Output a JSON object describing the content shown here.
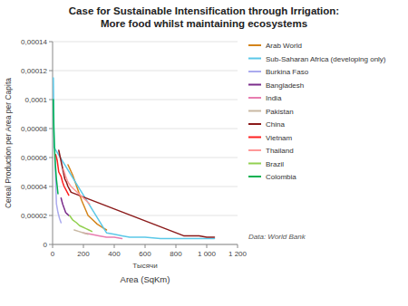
{
  "chart_data": {
    "type": "line",
    "title": "Case for Sustainable Intensification through Irrigation:\nMore food whilst maintaining ecosystems",
    "xlabel": "Area (SqKm)",
    "ylabel": "Cereal Production per Area per Capita",
    "annotations": [
      "Тысячи",
      "Data: World Bank"
    ],
    "xlim": [
      0,
      1200
    ],
    "ylim": [
      0,
      0.00014
    ],
    "xticks": [
      0,
      200,
      400,
      600,
      800,
      {
        "value": 1000,
        "label": "1 000"
      },
      {
        "value": 1200,
        "label": "1 200"
      }
    ],
    "yticks": [
      0,
      {
        "value": 2e-05,
        "label": "0,00002"
      },
      {
        "value": 4e-05,
        "label": "0,00004"
      },
      {
        "value": 6e-05,
        "label": "0,00006"
      },
      {
        "value": 8e-05,
        "label": "0,00008"
      },
      {
        "value": 0.0001,
        "label": "0,0001"
      },
      {
        "value": 0.00012,
        "label": "0,00012"
      },
      {
        "value": 0.00014,
        "label": "0,00014"
      }
    ],
    "grid": "y",
    "legend": "right",
    "series": [
      {
        "name": "Arab World",
        "color": "#D4841A",
        "x": [
          100,
          130,
          150,
          170,
          190,
          210,
          230,
          260,
          290,
          320,
          350
        ],
        "values": [
          5.5e-05,
          4.8e-05,
          4.2e-05,
          3.6e-05,
          3e-05,
          2.5e-05,
          2e-05,
          1.7e-05,
          1.4e-05,
          1.2e-05,
          1e-05
        ]
      },
      {
        "name": "Sub-Saharan Africa (developing only)",
        "color": "#5BC8E8",
        "x": [
          5,
          10,
          350,
          400,
          450,
          500,
          600,
          700,
          800,
          900,
          1000,
          1050
        ],
        "values": [
          0.000115,
          6.7e-05,
          8e-06,
          7e-06,
          6e-06,
          5e-06,
          5e-06,
          4e-06,
          4e-06,
          4e-06,
          4e-06,
          4e-06
        ]
      },
      {
        "name": "Burkina Faso",
        "color": "#AAAAEE",
        "x": [
          15,
          25,
          35,
          45,
          55
        ],
        "values": [
          6e-05,
          2.8e-05,
          2.2e-05,
          1.8e-05,
          1.5e-05
        ]
      },
      {
        "name": "Bangladesh",
        "color": "#7B2D8B",
        "x": [
          55,
          65,
          75,
          85,
          95,
          105
        ],
        "values": [
          3.2e-05,
          2.8e-05,
          2.5e-05,
          2.2e-05,
          2.1e-05,
          2e-05
        ]
      },
      {
        "name": "India",
        "color": "#E87DB0",
        "x": [
          200,
          250,
          300,
          350,
          400,
          450
        ],
        "values": [
          8e-06,
          7e-06,
          6e-06,
          5e-06,
          5e-06,
          4e-06
        ]
      },
      {
        "name": "Pakistan",
        "color": "#C8B8A2",
        "x": [
          140,
          170,
          200,
          230
        ],
        "values": [
          1e-05,
          9e-06,
          8e-06,
          7e-06
        ]
      },
      {
        "name": "China",
        "color": "#8B1A1A",
        "x": [
          40,
          50,
          60,
          70,
          80,
          90,
          100,
          110,
          120,
          850,
          900,
          950,
          1000,
          1050
        ],
        "values": [
          6.5e-05,
          6e-05,
          5.5e-05,
          5e-05,
          4.5e-05,
          4.3e-05,
          4e-05,
          3.8e-05,
          3.6e-05,
          6e-06,
          6e-06,
          6e-06,
          5e-06,
          5e-06
        ]
      },
      {
        "name": "Vietnam",
        "color": "#FF2020",
        "x": [
          20,
          30,
          40,
          55,
          65,
          75,
          85,
          95,
          105
        ],
        "values": [
          6.2e-05,
          5.8e-05,
          5e-05,
          4.7e-05,
          4.3e-05,
          4e-05,
          3.8e-05,
          3.6e-05,
          3.4e-05
        ]
      },
      {
        "name": "Thailand",
        "color": "#FF9999",
        "x": [
          70,
          85,
          100,
          120,
          140,
          160,
          180,
          200,
          220,
          240
        ],
        "values": [
          5.2e-05,
          4.7e-05,
          4.3e-05,
          4e-05,
          3.8e-05,
          3.6e-05,
          3.4e-05,
          3.2e-05,
          3e-05,
          2.8e-05
        ]
      },
      {
        "name": "Brazil",
        "color": "#92D050",
        "x": [
          110,
          130,
          155,
          175,
          195,
          215,
          235,
          255
        ],
        "values": [
          2e-05,
          1.7e-05,
          1.5e-05,
          1.3e-05,
          1.2e-05,
          1.1e-05,
          1e-05,
          9e-06
        ]
      },
      {
        "name": "Colombia",
        "color": "#00B050",
        "x": [
          5,
          8,
          12,
          18,
          25,
          35
        ],
        "values": [
          0.0001,
          8e-05,
          6.8e-05,
          5.5e-05,
          4.5e-05,
          3.5e-05
        ]
      }
    ]
  }
}
